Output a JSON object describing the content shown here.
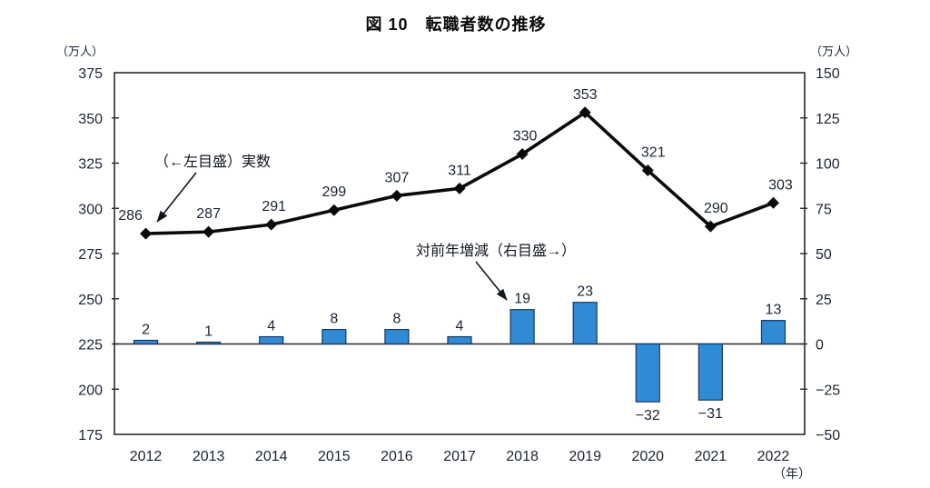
{
  "title": "図 10　転職者数の推移",
  "chart_data": {
    "type": "combo-line-bar",
    "title": "図 10　転職者数の推移",
    "categories": [
      "2012",
      "2013",
      "2014",
      "2015",
      "2016",
      "2017",
      "2018",
      "2019",
      "2020",
      "2021",
      "2022"
    ],
    "series": [
      {
        "name": "実数",
        "type": "line",
        "axis": "left",
        "marker": "diamond",
        "color": "#0a0a0a",
        "values": [
          286,
          287,
          291,
          299,
          307,
          311,
          330,
          353,
          321,
          290,
          303
        ]
      },
      {
        "name": "対前年増減",
        "type": "bar",
        "axis": "right",
        "fill": "#2F8BD6",
        "stroke": "#17375E",
        "values": [
          2,
          1,
          4,
          8,
          8,
          4,
          19,
          23,
          -32,
          -31,
          13
        ]
      }
    ],
    "left_axis": {
      "unit": "（万人）",
      "min": 175,
      "max": 375,
      "step": 25,
      "tick_labels": [
        "375",
        "350",
        "325",
        "300",
        "275",
        "250",
        "225",
        "200",
        "175"
      ]
    },
    "right_axis": {
      "unit": "（万人）",
      "min": -50,
      "max": 150,
      "step": 25,
      "tick_labels": [
        "150",
        "125",
        "100",
        "75",
        "50",
        "25",
        "0",
        "−25",
        "−50"
      ]
    },
    "x_axis": {
      "unit": "（年）"
    },
    "annotations": [
      {
        "id": "left-scale-note",
        "text": "（←左目盛）実数",
        "points_to": "2012 line point (286)"
      },
      {
        "id": "right-scale-note",
        "text": "対前年増減（右目盛→）",
        "points_to": "2018 bar (19)"
      }
    ],
    "grid": false,
    "legend_position": "none"
  }
}
